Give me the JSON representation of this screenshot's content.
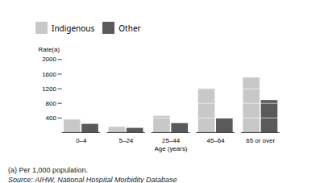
{
  "chart_data": {
    "type": "bar",
    "categories": [
      "0–4",
      "5–24",
      "25–44",
      "45–64",
      "65 or over"
    ],
    "series": [
      {
        "name": "Indigenous",
        "color": "#c8c8c8",
        "values": [
          350,
          150,
          450,
          1200,
          1500
        ]
      },
      {
        "name": "Other",
        "color": "#5a5a5a",
        "values": [
          230,
          120,
          250,
          380,
          880
        ]
      }
    ],
    "xlabel": "Age (years)",
    "ylabel": "Rate(a)",
    "ylim": [
      0,
      2000
    ],
    "yticks": [
      400,
      800,
      1200,
      1600,
      2000
    ],
    "legend": "top",
    "annotations": [
      "(a) Per 1,000 population.",
      "Source: AIHW, National Hospital Morbidity Database"
    ]
  }
}
